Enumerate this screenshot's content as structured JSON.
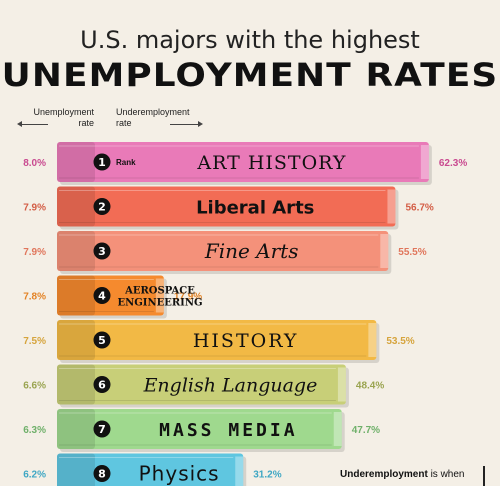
{
  "title_line1": "U.S. majors with the highest",
  "title_line2": "UNEMPLOYMENT RATES",
  "header_left_line1": "Unemployment",
  "header_left_line2": "rate",
  "header_right_line1": "Underemployment",
  "header_right_line2": "rate",
  "rank_label": "Rank",
  "note_bold": "Underemployment",
  "note_text": " is when",
  "chart_data": {
    "type": "bar",
    "categories": [
      "ART HISTORY",
      "Liberal Arts",
      "Fine Arts",
      "AEROSPACE ENGINEERING",
      "HISTORY",
      "English Language",
      "MASS MEDIA",
      "Physics"
    ],
    "ranks": [
      "1",
      "2",
      "3",
      "4",
      "5",
      "6",
      "7",
      "8"
    ],
    "series": [
      {
        "name": "Unemployment rate",
        "values": [
          8.0,
          7.9,
          7.9,
          7.8,
          7.5,
          6.6,
          6.3,
          6.2
        ]
      },
      {
        "name": "Underemployment rate",
        "values": [
          62.3,
          56.7,
          55.5,
          17.9,
          53.5,
          48.4,
          47.7,
          31.2
        ]
      }
    ],
    "unemployment_labels": [
      "8.0%",
      "7.9%",
      "7.9%",
      "7.8%",
      "7.5%",
      "6.6%",
      "6.3%",
      "6.2%"
    ],
    "underemployment_labels": [
      "62.3%",
      "56.7%",
      "55.5%",
      "17.9%",
      "53.5%",
      "48.4%",
      "47.7%",
      "31.2%"
    ],
    "colors": [
      "#e97ab8",
      "#f26c55",
      "#f4917a",
      "#f58a2e",
      "#f2b945",
      "#c8cf78",
      "#9fd98e",
      "#5fc6e0"
    ],
    "label_colors": [
      "#c94a90",
      "#d35d45",
      "#e0765c",
      "#e38326",
      "#d6a43c",
      "#9aa450",
      "#6fb06a",
      "#3fa7c4"
    ],
    "xlim": [
      0,
      65
    ]
  }
}
